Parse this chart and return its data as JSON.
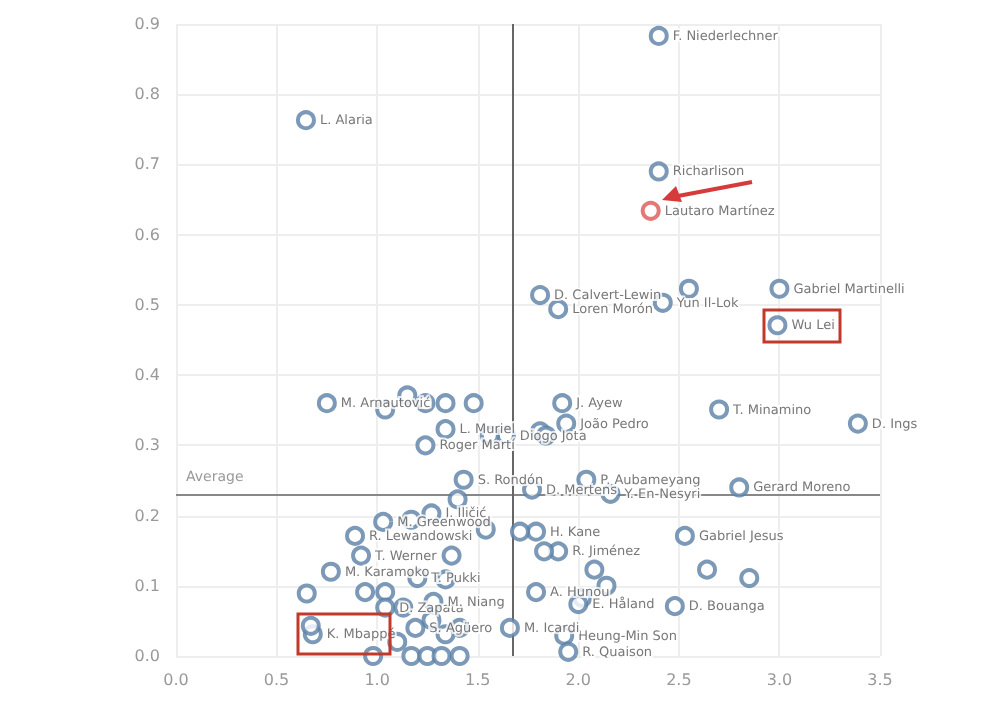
{
  "chart_data": {
    "type": "scatter",
    "marker": "circle",
    "grid": true,
    "xlim": [
      0,
      3.5
    ],
    "ylim": [
      0,
      0.9
    ],
    "xticks": [
      {
        "value": 0,
        "label": "0.0"
      },
      {
        "value": 0.5,
        "label": "0.5"
      },
      {
        "value": 1,
        "label": "1.0"
      },
      {
        "value": 1.5,
        "label": "1.5"
      },
      {
        "value": 2,
        "label": "2.0"
      },
      {
        "value": 2.5,
        "label": "2.5"
      },
      {
        "value": 3,
        "label": "3.0"
      },
      {
        "value": 3.5,
        "label": "3.5"
      }
    ],
    "yticks": [
      {
        "value": 0,
        "label": "0.0"
      },
      {
        "value": 0.1,
        "label": "0.1"
      },
      {
        "value": 0.2,
        "label": "0.2"
      },
      {
        "value": 0.3,
        "label": "0.3"
      },
      {
        "value": 0.4,
        "label": "0.4"
      },
      {
        "value": 0.5,
        "label": "0.5"
      },
      {
        "value": 0.6,
        "label": "0.6"
      },
      {
        "value": 0.7,
        "label": "0.7"
      },
      {
        "value": 0.8,
        "label": "0.8"
      },
      {
        "value": 0.9,
        "label": "0.9"
      }
    ],
    "ref_lines": [
      {
        "axis": "y",
        "value": 0.23,
        "label": "Average",
        "color": "#888888"
      },
      {
        "axis": "x",
        "value": 1.67,
        "color": "#666666"
      }
    ],
    "x": [
      0.646,
      2.4,
      2.4,
      2.36,
      1.81,
      1.9,
      2.42,
      2.55,
      3.0,
      2.99,
      0.75,
      1.04,
      1.15,
      1.24,
      1.34,
      1.48,
      1.34,
      1.24,
      1.43,
      1.64,
      1.56,
      1.27,
      1.4,
      1.17,
      1.03,
      0.89,
      1.54,
      0.92,
      1.37,
      0.77,
      1.2,
      0.65,
      0.94,
      1.04,
      1.04,
      1.13,
      1.34,
      1.28,
      1.19,
      0.68,
      0.67,
      1.1,
      0.98,
      1.17,
      1.25,
      1.32,
      1.41,
      1.27,
      1.41,
      1.34,
      1.92,
      1.94,
      1.81,
      1.84,
      2.7,
      3.39,
      2.04,
      2.16,
      2.8,
      1.77,
      1.79,
      1.71,
      1.9,
      1.83,
      2.53,
      2.64,
      2.85,
      2.48,
      2.08,
      2.14,
      2.02,
      1.79,
      2.0,
      1.93,
      1.95,
      1.66
    ],
    "values": [
      0.763,
      0.883,
      0.69,
      0.634,
      0.514,
      0.494,
      0.503,
      0.523,
      0.523,
      0.471,
      0.36,
      0.351,
      0.371,
      0.36,
      0.36,
      0.36,
      0.323,
      0.3,
      0.251,
      0.314,
      0.314,
      0.203,
      0.223,
      0.194,
      0.191,
      0.171,
      0.18,
      0.143,
      0.143,
      0.12,
      0.111,
      0.089,
      0.091,
      0.091,
      0.069,
      0.069,
      0.109,
      0.077,
      0.04,
      0.031,
      0.043,
      0.02,
      0.0,
      0.0,
      0.0,
      0.0,
      0.0,
      0.051,
      0.04,
      0.031,
      0.36,
      0.331,
      0.32,
      0.314,
      0.351,
      0.331,
      0.251,
      0.231,
      0.24,
      0.237,
      0.177,
      0.177,
      0.149,
      0.149,
      0.171,
      0.123,
      0.111,
      0.071,
      0.123,
      0.1,
      0.083,
      0.091,
      0.074,
      0.029,
      0.006,
      0.04
    ],
    "colors": [
      "#5b7fa6",
      "#5b7fa6",
      "#5b7fa6",
      "#e05555",
      "#5b7fa6",
      "#5b7fa6",
      "#5b7fa6",
      "#5b7fa6",
      "#5b7fa6",
      "#5b7fa6",
      "#5b7fa6",
      "#5b7fa6",
      "#5b7fa6",
      "#5b7fa6",
      "#5b7fa6",
      "#5b7fa6",
      "#5b7fa6",
      "#5b7fa6",
      "#5b7fa6",
      "#5b7fa6",
      "#5b7fa6",
      "#5b7fa6",
      "#5b7fa6",
      "#5b7fa6",
      "#5b7fa6",
      "#5b7fa6",
      "#5b7fa6",
      "#5b7fa6",
      "#5b7fa6",
      "#5b7fa6",
      "#5b7fa6",
      "#5b7fa6",
      "#5b7fa6",
      "#5b7fa6",
      "#5b7fa6",
      "#5b7fa6",
      "#5b7fa6",
      "#5b7fa6",
      "#5b7fa6",
      "#5b7fa6",
      "#5b7fa6",
      "#5b7fa6",
      "#5b7fa6",
      "#5b7fa6",
      "#5b7fa6",
      "#5b7fa6",
      "#5b7fa6",
      "#5b7fa6",
      "#5b7fa6",
      "#5b7fa6",
      "#5b7fa6",
      "#5b7fa6",
      "#5b7fa6",
      "#5b7fa6",
      "#5b7fa6",
      "#5b7fa6",
      "#5b7fa6",
      "#5b7fa6",
      "#5b7fa6",
      "#5b7fa6",
      "#5b7fa6",
      "#5b7fa6",
      "#5b7fa6",
      "#5b7fa6",
      "#5b7fa6",
      "#5b7fa6",
      "#5b7fa6",
      "#5b7fa6",
      "#5b7fa6",
      "#5b7fa6",
      "#5b7fa6",
      "#5b7fa6",
      "#5b7fa6",
      "#5b7fa6",
      "#5b7fa6",
      "#5b7fa6"
    ],
    "annotations": [
      {
        "text": "L. Alaria",
        "x": 0.646,
        "y": 0.763
      },
      {
        "text": "F. Niederlechner",
        "x": 2.4,
        "y": 0.883
      },
      {
        "text": "Richarlison",
        "x": 2.4,
        "y": 0.69
      },
      {
        "text": "Lautaro Martínez",
        "x": 2.36,
        "y": 0.634
      },
      {
        "text": "D. Calvert-Lewin",
        "x": 1.81,
        "y": 0.514
      },
      {
        "text": "Loren Morón",
        "x": 1.9,
        "y": 0.494
      },
      {
        "text": "Yun Il-Lok",
        "x": 2.42,
        "y": 0.503
      },
      {
        "text": "Gabriel Martinelli",
        "x": 3.0,
        "y": 0.523
      },
      {
        "text": "Wu Lei",
        "x": 2.99,
        "y": 0.471
      },
      {
        "text": "M. Arnautović",
        "x": 0.75,
        "y": 0.36
      },
      {
        "text": "L. Muriel",
        "x": 1.34,
        "y": 0.323
      },
      {
        "text": "Roger Martí",
        "x": 1.24,
        "y": 0.3
      },
      {
        "text": "S. Rondón",
        "x": 1.43,
        "y": 0.251
      },
      {
        "text": "Diogo Jota",
        "x": 1.64,
        "y": 0.314
      },
      {
        "text": "J. Iličić",
        "x": 1.27,
        "y": 0.203
      },
      {
        "text": "R. Lewandowski",
        "x": 0.89,
        "y": 0.171
      },
      {
        "text": "M. Greenwood",
        "x": 1.03,
        "y": 0.191
      },
      {
        "text": "T. Werner",
        "x": 0.92,
        "y": 0.143
      },
      {
        "text": "M. Karamoko",
        "x": 0.77,
        "y": 0.12
      },
      {
        "text": "T. Pukki",
        "x": 1.2,
        "y": 0.111
      },
      {
        "text": "D. Zapata",
        "x": 1.04,
        "y": 0.069
      },
      {
        "text": "M. Niang",
        "x": 1.28,
        "y": 0.077
      },
      {
        "text": "S. Agüero",
        "x": 1.19,
        "y": 0.04
      },
      {
        "text": "K. Mbappé",
        "x": 0.68,
        "y": 0.031
      },
      {
        "text": "J. Ayew",
        "x": 1.92,
        "y": 0.36
      },
      {
        "text": "João Pedro",
        "x": 1.94,
        "y": 0.331
      },
      {
        "text": "T. Minamino",
        "x": 2.7,
        "y": 0.351
      },
      {
        "text": "D. Ings",
        "x": 3.39,
        "y": 0.331
      },
      {
        "text": "P. Aubameyang",
        "x": 2.04,
        "y": 0.251
      },
      {
        "text": "Y. En-Nesyri",
        "x": 2.16,
        "y": 0.231
      },
      {
        "text": "Gerard Moreno",
        "x": 2.8,
        "y": 0.24
      },
      {
        "text": "D. Mertens",
        "x": 1.77,
        "y": 0.237
      },
      {
        "text": "H. Kane",
        "x": 1.79,
        "y": 0.177
      },
      {
        "text": "R. Jiménez",
        "x": 1.9,
        "y": 0.149
      },
      {
        "text": "Gabriel Jesus",
        "x": 2.53,
        "y": 0.171
      },
      {
        "text": "D. Bouanga",
        "x": 2.48,
        "y": 0.071
      },
      {
        "text": "E. Håland",
        "x": 2.0,
        "y": 0.074
      },
      {
        "text": "A. Hunou",
        "x": 1.79,
        "y": 0.091
      },
      {
        "text": "M. Icardi",
        "x": 1.66,
        "y": 0.04
      },
      {
        "text": "Heung-Min Son",
        "x": 1.93,
        "y": 0.029
      },
      {
        "text": "R. Quaison",
        "x": 1.95,
        "y": 0.006
      }
    ]
  }
}
